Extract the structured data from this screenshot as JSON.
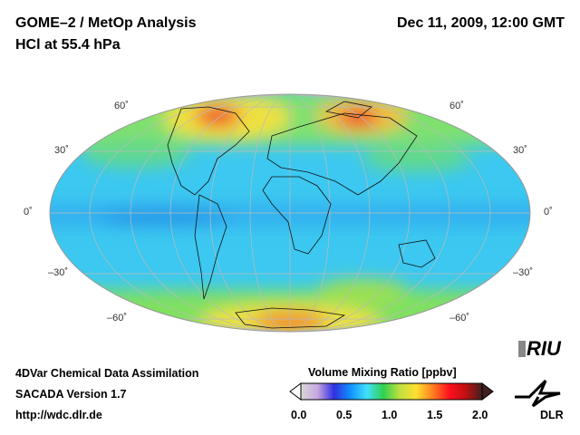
{
  "header": {
    "title": "GOME–2 / MetOp Analysis",
    "subtitle": "HCl at 55.4 hPa",
    "datetime": "Dec 11, 2009, 12:00 GMT"
  },
  "map": {
    "lat_labels": [
      "60˚",
      "30˚",
      "0˚",
      "–30˚",
      "–60˚"
    ]
  },
  "footer": {
    "line1": "4DVar Chemical Data Assimilation",
    "line2": "SACADA Version 1.7",
    "line3": "http://wdc.dlr.de"
  },
  "colorbar": {
    "title": "Volume Mixing Ratio [ppbv]",
    "ticks": [
      "0.0",
      "0.5",
      "1.0",
      "1.5",
      "2.0"
    ],
    "range": [
      0,
      2
    ],
    "colors": [
      "#d8d8d8",
      "#c8a8e0",
      "#3030e0",
      "#1090ff",
      "#40e0ff",
      "#30d050",
      "#c0e040",
      "#ffe030",
      "#ff8020",
      "#ff1020",
      "#c01010",
      "#402020"
    ]
  },
  "logos": {
    "riu": "RIU",
    "dlr": "DLR"
  }
}
